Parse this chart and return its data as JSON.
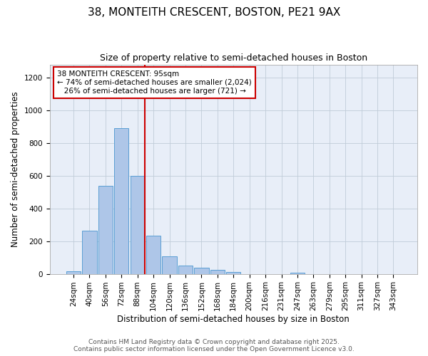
{
  "title1": "38, MONTEITH CRESCENT, BOSTON, PE21 9AX",
  "title2": "Size of property relative to semi-detached houses in Boston",
  "xlabel": "Distribution of semi-detached houses by size in Boston",
  "ylabel": "Number of semi-detached properties",
  "bar_labels": [
    "24sqm",
    "40sqm",
    "56sqm",
    "72sqm",
    "88sqm",
    "104sqm",
    "120sqm",
    "136sqm",
    "152sqm",
    "168sqm",
    "184sqm",
    "200sqm",
    "216sqm",
    "231sqm",
    "247sqm",
    "263sqm",
    "279sqm",
    "295sqm",
    "311sqm",
    "327sqm",
    "343sqm"
  ],
  "bar_values": [
    15,
    265,
    540,
    890,
    600,
    235,
    105,
    50,
    38,
    25,
    12,
    0,
    0,
    0,
    5,
    0,
    0,
    0,
    0,
    0,
    0
  ],
  "bar_color": "#aec6e8",
  "bar_edge_color": "#5a9fd4",
  "vline_color": "#cc0000",
  "annotation_text": "38 MONTEITH CRESCENT: 95sqm\n← 74% of semi-detached houses are smaller (2,024)\n   26% of semi-detached houses are larger (721) →",
  "annotation_box_color": "#ffffff",
  "annotation_box_edge": "#cc0000",
  "ylim": [
    0,
    1280
  ],
  "yticks": [
    0,
    200,
    400,
    600,
    800,
    1000,
    1200
  ],
  "fig_bg_color": "#ffffff",
  "plot_bg_color": "#e8eef8",
  "grid_color": "#c0ccd8",
  "footer_line1": "Contains HM Land Registry data © Crown copyright and database right 2025.",
  "footer_line2": "Contains public sector information licensed under the Open Government Licence v3.0.",
  "title_fontsize": 11,
  "subtitle_fontsize": 9,
  "axis_label_fontsize": 8.5,
  "tick_fontsize": 7.5,
  "annotation_fontsize": 7.5,
  "footer_fontsize": 6.5
}
